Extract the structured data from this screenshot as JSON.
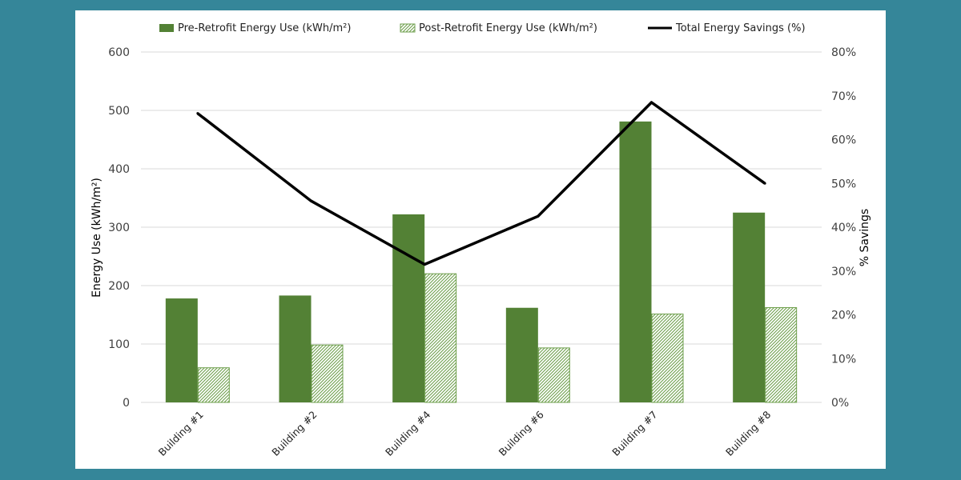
{
  "colors": {
    "background": "#358699",
    "panel": "#ffffff",
    "pre_bar": "#538135",
    "post_bar_pattern": "#6e9f4c",
    "savings_line": "#000000",
    "gridline": "#d9d9d9"
  },
  "chart_data": {
    "type": "bar",
    "categories": [
      "Building #1",
      "Building #2",
      "Building #4",
      "Building #6",
      "Building #7",
      "Building #8"
    ],
    "series": [
      {
        "name": "Pre-Retrofit Energy Use (kWh/m²)",
        "type": "bar",
        "axis": "left",
        "values": [
          178,
          183,
          322,
          162,
          481,
          325
        ]
      },
      {
        "name": "Post-Retrofit Energy Use (kWh/m²)",
        "type": "bar",
        "axis": "left",
        "pattern": "hatched",
        "values": [
          60,
          99,
          221,
          94,
          152,
          163
        ]
      },
      {
        "name": "Total Energy Savings (%)",
        "type": "line",
        "axis": "right",
        "values": [
          66,
          46,
          31.5,
          42.5,
          68.5,
          50
        ]
      }
    ],
    "ylabel": "Energy Use (kWh/m²)",
    "y2label": "% Savings",
    "ylim": [
      0,
      600
    ],
    "yticks": [
      0,
      100,
      200,
      300,
      400,
      500,
      600
    ],
    "y2lim": [
      0,
      80
    ],
    "y2ticks": [
      "0%",
      "10%",
      "20%",
      "30%",
      "40%",
      "50%",
      "60%",
      "70%",
      "80%"
    ],
    "grid": true,
    "legend_position": "top"
  }
}
